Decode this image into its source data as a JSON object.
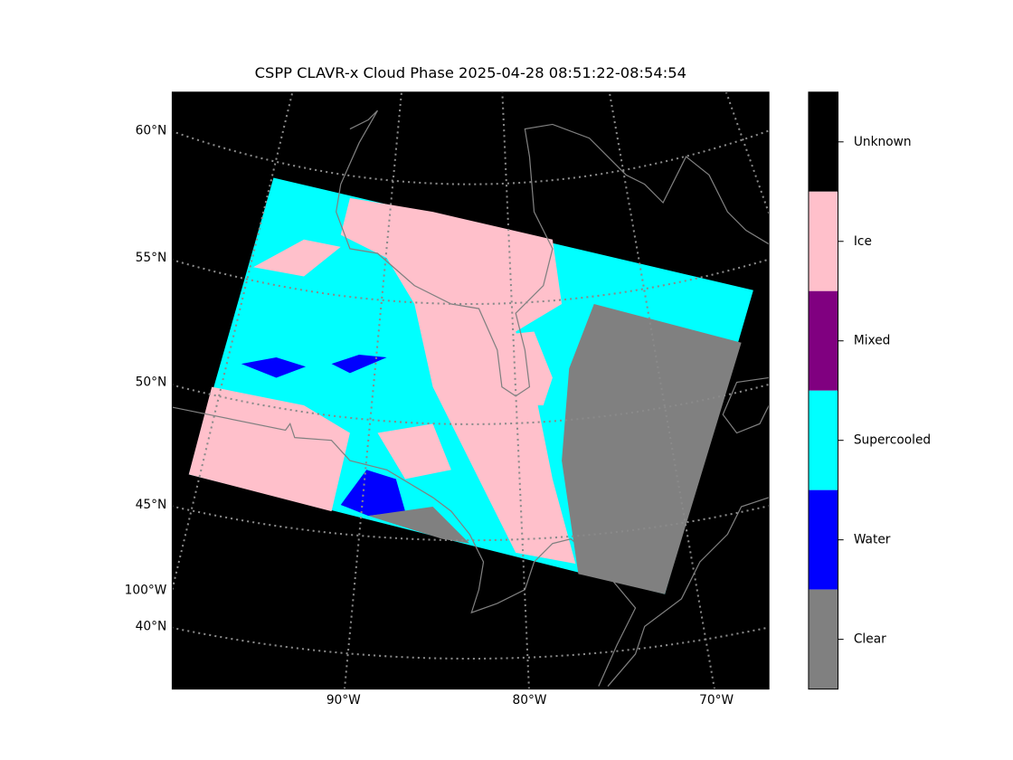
{
  "title": "CSPP CLAVR-x Cloud Phase 2025-04-28 08:51:22-08:54:54",
  "latitude_labels": [
    "60°N",
    "55°N",
    "50°N",
    "45°N",
    "40°N"
  ],
  "left_longitude_labels": [
    "100°W"
  ],
  "bottom_longitude_labels": [
    "90°W",
    "80°W",
    "70°W"
  ],
  "colorbar": [
    {
      "label": "Unknown",
      "color": "#000000"
    },
    {
      "label": "Ice",
      "color": "#ffc0cb"
    },
    {
      "label": "Mixed",
      "color": "#800080"
    },
    {
      "label": "Supercooled",
      "color": "#00ffff"
    },
    {
      "label": "Water",
      "color": "#0000ff"
    },
    {
      "label": "Clear",
      "color": "#808080"
    }
  ]
}
